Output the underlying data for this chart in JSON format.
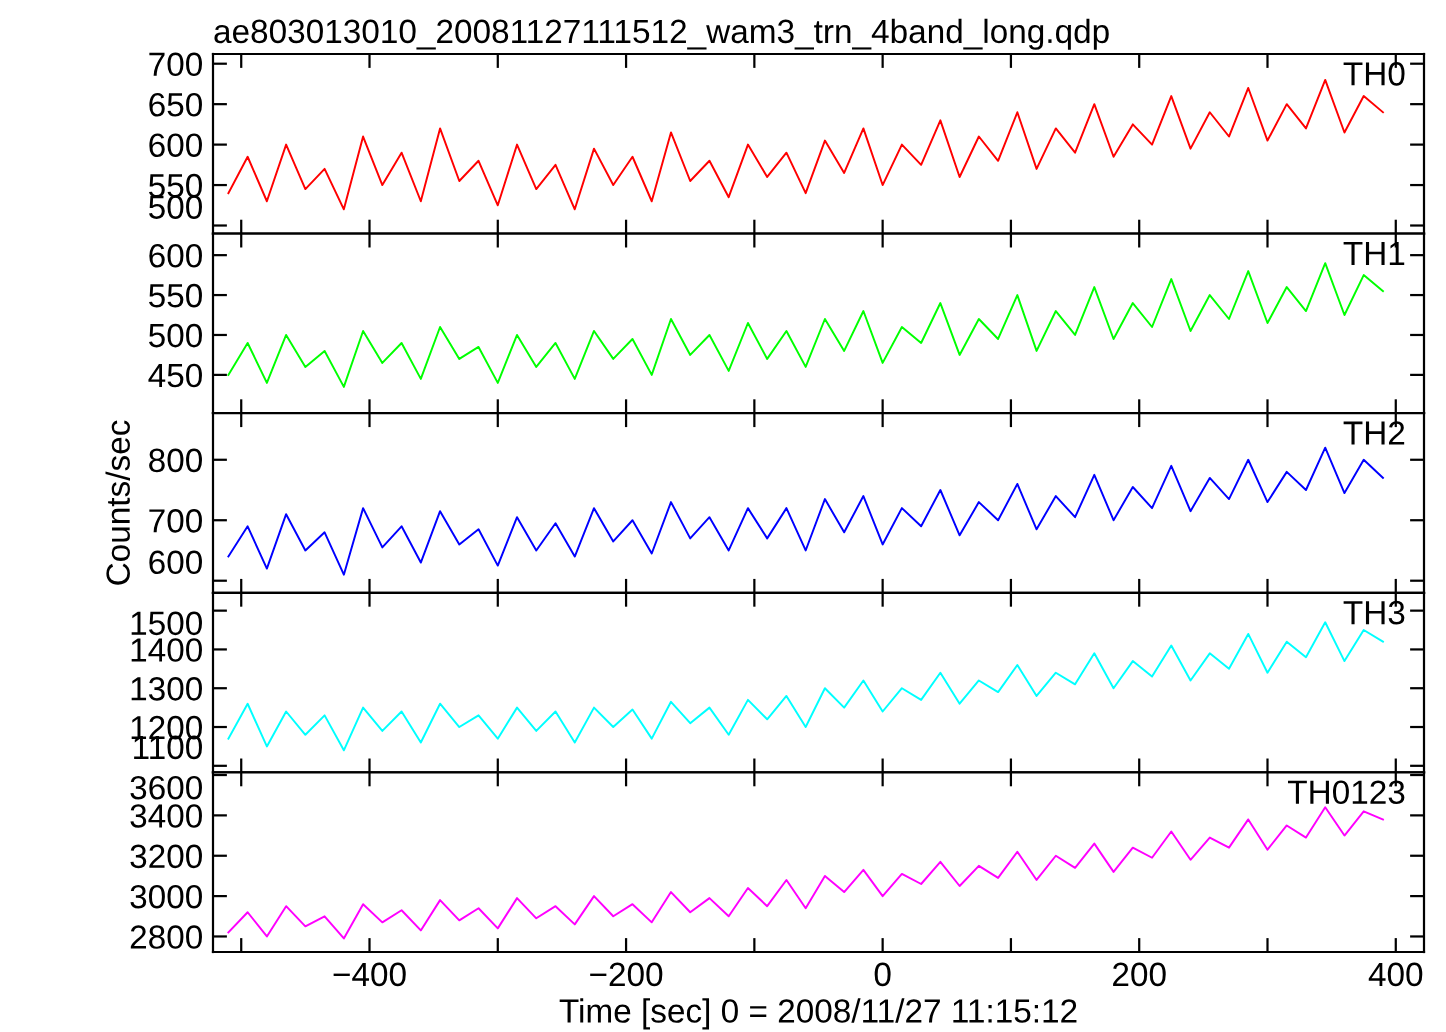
{
  "chart_data": [
    {
      "type": "line",
      "title": "ae803013010_20081127111512_wam3_trn_4band_long.qdp",
      "tick_labels": "y",
      "legend": false,
      "xlim": [
        -522,
        422
      ],
      "xticks": [
        {
          "value": -500,
          "label": null
        },
        {
          "value": -400,
          "label": null
        },
        {
          "value": -300,
          "label": null
        },
        {
          "value": -200,
          "label": null
        },
        {
          "value": -100,
          "label": null
        },
        {
          "value": 0,
          "label": null
        },
        {
          "value": 100,
          "label": null
        },
        {
          "value": 200,
          "label": null
        },
        {
          "value": 300,
          "label": null
        },
        {
          "value": 400,
          "label": null
        }
      ],
      "ylim": [
        490,
        712
      ],
      "yticks": [
        500,
        550,
        600,
        650,
        700
      ],
      "x": [
        -510,
        -495,
        -480,
        -465,
        -450,
        -435,
        -420,
        -405,
        -390,
        -375,
        -360,
        -345,
        -330,
        -315,
        -300,
        -285,
        -270,
        -255,
        -240,
        -225,
        -210,
        -195,
        -180,
        -165,
        -150,
        -135,
        -120,
        -105,
        -90,
        -75,
        -60,
        -45,
        -30,
        -15,
        0,
        15,
        30,
        45,
        60,
        75,
        90,
        105,
        120,
        135,
        150,
        165,
        180,
        195,
        210,
        225,
        240,
        255,
        270,
        285,
        300,
        315,
        330,
        345,
        360,
        375,
        390
      ],
      "series": [
        {
          "name": "TH0",
          "color": "#ff0000",
          "values": [
            540,
            585,
            530,
            600,
            545,
            570,
            520,
            610,
            550,
            590,
            530,
            620,
            555,
            580,
            525,
            600,
            545,
            575,
            520,
            595,
            550,
            585,
            530,
            615,
            555,
            580,
            535,
            600,
            560,
            590,
            540,
            605,
            565,
            620,
            550,
            600,
            575,
            630,
            560,
            610,
            580,
            640,
            570,
            620,
            590,
            650,
            585,
            625,
            600,
            660,
            595,
            640,
            610,
            670,
            605,
            650,
            620,
            680,
            615,
            660,
            640
          ]
        }
      ]
    },
    {
      "type": "line",
      "tick_labels": "y",
      "legend": false,
      "xlim": [
        -522,
        422
      ],
      "xticks": [
        {
          "value": -500,
          "label": null
        },
        {
          "value": -400,
          "label": null
        },
        {
          "value": -300,
          "label": null
        },
        {
          "value": -200,
          "label": null
        },
        {
          "value": -100,
          "label": null
        },
        {
          "value": 0,
          "label": null
        },
        {
          "value": 100,
          "label": null
        },
        {
          "value": 200,
          "label": null
        },
        {
          "value": 300,
          "label": null
        },
        {
          "value": 400,
          "label": null
        }
      ],
      "ylim": [
        402,
        627
      ],
      "yticks": [
        450,
        500,
        550,
        600
      ],
      "x": [
        -510,
        -495,
        -480,
        -465,
        -450,
        -435,
        -420,
        -405,
        -390,
        -375,
        -360,
        -345,
        -330,
        -315,
        -300,
        -285,
        -270,
        -255,
        -240,
        -225,
        -210,
        -195,
        -180,
        -165,
        -150,
        -135,
        -120,
        -105,
        -90,
        -75,
        -60,
        -45,
        -30,
        -15,
        0,
        15,
        30,
        45,
        60,
        75,
        90,
        105,
        120,
        135,
        150,
        165,
        180,
        195,
        210,
        225,
        240,
        255,
        270,
        285,
        300,
        315,
        330,
        345,
        360,
        375,
        390
      ],
      "series": [
        {
          "name": "TH1",
          "color": "#00ff00",
          "values": [
            450,
            490,
            440,
            500,
            460,
            480,
            435,
            505,
            465,
            490,
            445,
            510,
            470,
            485,
            440,
            500,
            460,
            490,
            445,
            505,
            470,
            495,
            450,
            520,
            475,
            500,
            455,
            515,
            470,
            505,
            460,
            520,
            480,
            530,
            465,
            510,
            490,
            540,
            475,
            520,
            495,
            550,
            480,
            530,
            500,
            560,
            495,
            540,
            510,
            570,
            505,
            550,
            520,
            580,
            515,
            560,
            530,
            590,
            525,
            575,
            555
          ]
        }
      ]
    },
    {
      "type": "line",
      "ylabel": "Counts/sec",
      "tick_labels": "y",
      "legend": false,
      "xlim": [
        -522,
        422
      ],
      "xticks": [
        {
          "value": -500,
          "label": null
        },
        {
          "value": -400,
          "label": null
        },
        {
          "value": -300,
          "label": null
        },
        {
          "value": -200,
          "label": null
        },
        {
          "value": -100,
          "label": null
        },
        {
          "value": 0,
          "label": null
        },
        {
          "value": 100,
          "label": null
        },
        {
          "value": 200,
          "label": null
        },
        {
          "value": 300,
          "label": null
        },
        {
          "value": 400,
          "label": null
        }
      ],
      "ylim": [
        580,
        877
      ],
      "yticks": [
        600,
        700,
        800
      ],
      "x": [
        -510,
        -495,
        -480,
        -465,
        -450,
        -435,
        -420,
        -405,
        -390,
        -375,
        -360,
        -345,
        -330,
        -315,
        -300,
        -285,
        -270,
        -255,
        -240,
        -225,
        -210,
        -195,
        -180,
        -165,
        -150,
        -135,
        -120,
        -105,
        -90,
        -75,
        -60,
        -45,
        -30,
        -15,
        0,
        15,
        30,
        45,
        60,
        75,
        90,
        105,
        120,
        135,
        150,
        165,
        180,
        195,
        210,
        225,
        240,
        255,
        270,
        285,
        300,
        315,
        330,
        345,
        360,
        375,
        390
      ],
      "series": [
        {
          "name": "TH2",
          "color": "#0000ff",
          "values": [
            640,
            690,
            620,
            710,
            650,
            680,
            610,
            720,
            655,
            690,
            630,
            715,
            660,
            685,
            625,
            705,
            650,
            695,
            640,
            720,
            665,
            700,
            645,
            730,
            670,
            705,
            650,
            720,
            670,
            720,
            650,
            735,
            680,
            740,
            660,
            720,
            690,
            750,
            675,
            730,
            700,
            760,
            685,
            740,
            705,
            775,
            700,
            755,
            720,
            790,
            715,
            770,
            735,
            800,
            730,
            780,
            750,
            820,
            745,
            800,
            770
          ]
        }
      ]
    },
    {
      "type": "line",
      "tick_labels": "y",
      "legend": false,
      "xlim": [
        -522,
        422
      ],
      "xticks": [
        {
          "value": -500,
          "label": null
        },
        {
          "value": -400,
          "label": null
        },
        {
          "value": -300,
          "label": null
        },
        {
          "value": -200,
          "label": null
        },
        {
          "value": -100,
          "label": null
        },
        {
          "value": 0,
          "label": null
        },
        {
          "value": 100,
          "label": null
        },
        {
          "value": 200,
          "label": null
        },
        {
          "value": 300,
          "label": null
        },
        {
          "value": 400,
          "label": null
        }
      ],
      "ylim": [
        1083,
        1546
      ],
      "yticks": [
        1100,
        1200,
        1300,
        1400,
        1500
      ],
      "x": [
        -510,
        -495,
        -480,
        -465,
        -450,
        -435,
        -420,
        -405,
        -390,
        -375,
        -360,
        -345,
        -330,
        -315,
        -300,
        -285,
        -270,
        -255,
        -240,
        -225,
        -210,
        -195,
        -180,
        -165,
        -150,
        -135,
        -120,
        -105,
        -90,
        -75,
        -60,
        -45,
        -30,
        -15,
        0,
        15,
        30,
        45,
        60,
        75,
        90,
        105,
        120,
        135,
        150,
        165,
        180,
        195,
        210,
        225,
        240,
        255,
        270,
        285,
        300,
        315,
        330,
        345,
        360,
        375,
        390
      ],
      "series": [
        {
          "name": "TH3",
          "color": "#00ffff",
          "values": [
            1170,
            1260,
            1150,
            1240,
            1180,
            1230,
            1140,
            1250,
            1190,
            1240,
            1160,
            1260,
            1200,
            1230,
            1170,
            1250,
            1190,
            1240,
            1160,
            1250,
            1200,
            1245,
            1170,
            1265,
            1210,
            1250,
            1180,
            1270,
            1220,
            1280,
            1200,
            1300,
            1250,
            1320,
            1240,
            1300,
            1270,
            1340,
            1260,
            1320,
            1290,
            1360,
            1280,
            1340,
            1310,
            1390,
            1300,
            1370,
            1330,
            1410,
            1320,
            1390,
            1350,
            1440,
            1340,
            1420,
            1380,
            1470,
            1370,
            1450,
            1420
          ]
        }
      ]
    },
    {
      "type": "line",
      "xlabel": "Time [sec] 0 = 2008/11/27 11:15:12",
      "legend": false,
      "xlim": [
        -522,
        422
      ],
      "xticks": [
        {
          "value": -500,
          "label": null
        },
        {
          "value": -400,
          "label": "−400"
        },
        {
          "value": -300,
          "label": null
        },
        {
          "value": -200,
          "label": "−200"
        },
        {
          "value": -100,
          "label": null
        },
        0,
        {
          "value": 100,
          "label": null
        },
        200,
        {
          "value": 300,
          "label": null
        },
        400
      ],
      "ylim": [
        2723,
        3613
      ],
      "yticks": [
        2800,
        3000,
        3200,
        3400,
        3600
      ],
      "x": [
        -510,
        -495,
        -480,
        -465,
        -450,
        -435,
        -420,
        -405,
        -390,
        -375,
        -360,
        -345,
        -330,
        -315,
        -300,
        -285,
        -270,
        -255,
        -240,
        -225,
        -210,
        -195,
        -180,
        -165,
        -150,
        -135,
        -120,
        -105,
        -90,
        -75,
        -60,
        -45,
        -30,
        -15,
        0,
        15,
        30,
        45,
        60,
        75,
        90,
        105,
        120,
        135,
        150,
        165,
        180,
        195,
        210,
        225,
        240,
        255,
        270,
        285,
        300,
        315,
        330,
        345,
        360,
        375,
        390
      ],
      "series": [
        {
          "name": "TH0123",
          "color": "#ff00ff",
          "values": [
            2820,
            2920,
            2800,
            2950,
            2850,
            2900,
            2790,
            2960,
            2870,
            2930,
            2830,
            2980,
            2880,
            2940,
            2840,
            2990,
            2890,
            2950,
            2860,
            3000,
            2900,
            2960,
            2870,
            3020,
            2920,
            2990,
            2900,
            3040,
            2950,
            3080,
            2940,
            3100,
            3020,
            3130,
            3000,
            3110,
            3060,
            3170,
            3050,
            3150,
            3090,
            3220,
            3080,
            3200,
            3140,
            3260,
            3120,
            3240,
            3190,
            3320,
            3180,
            3290,
            3240,
            3380,
            3230,
            3350,
            3290,
            3440,
            3300,
            3420,
            3380
          ]
        }
      ]
    }
  ]
}
